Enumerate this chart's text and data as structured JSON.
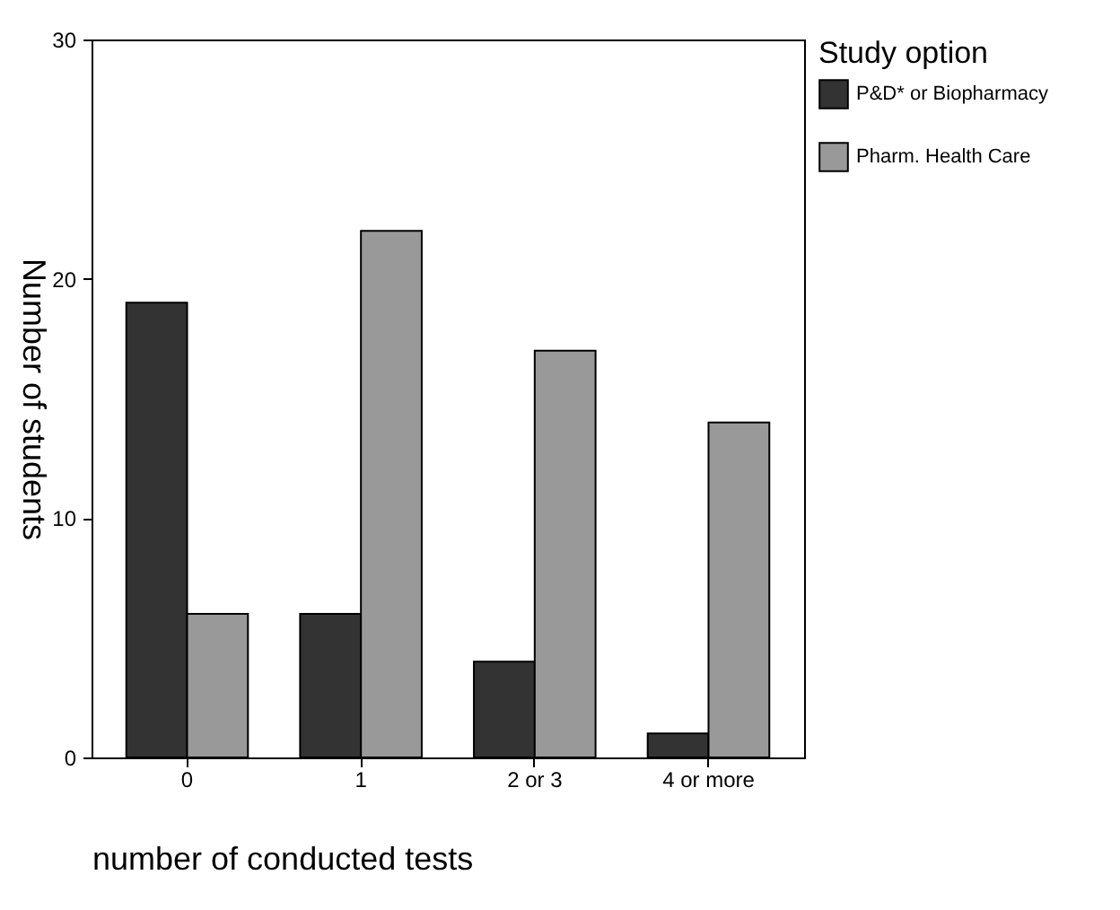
{
  "chart_data": {
    "type": "bar",
    "xlabel": "number of conducted tests",
    "ylabel": "Number of students",
    "legend_title": "Study option",
    "categories": [
      "0",
      "1",
      "2 or 3",
      "4 or more"
    ],
    "series": [
      {
        "name": "P&D* or Biopharmacy",
        "color": "#333333",
        "values": [
          19,
          6,
          4,
          1
        ]
      },
      {
        "name": "Pharm. Health Care",
        "color": "#999999",
        "values": [
          6,
          22,
          17,
          14
        ]
      }
    ],
    "ylim": [
      0,
      30
    ],
    "yticks": [
      0,
      10,
      20,
      30
    ],
    "grid": false,
    "legend": "right"
  }
}
